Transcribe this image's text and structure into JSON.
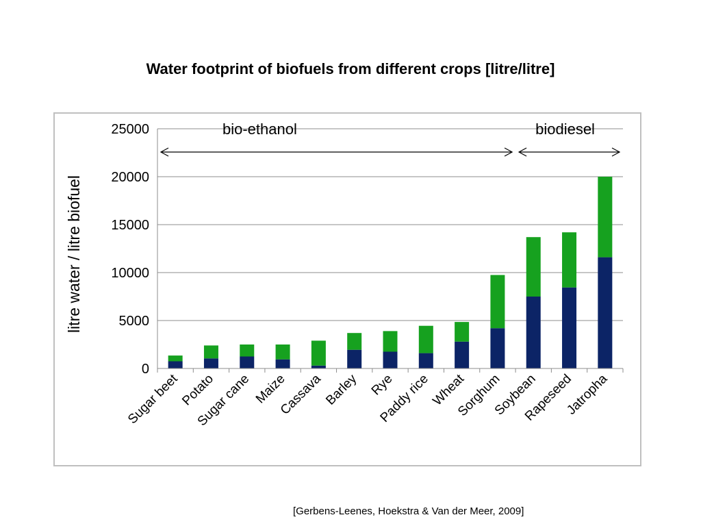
{
  "slide": {
    "title": "Water footprint of biofuels from different crops [litre/litre]",
    "citation": "[Gerbens-Leenes, Hoekstra & Van der Meer, 2009]"
  },
  "chart_data": {
    "type": "bar",
    "stacked": true,
    "title": "",
    "ylabel": "litre water / litre biofuel",
    "xlabel": "",
    "ylim": [
      0,
      25000
    ],
    "yticks": [
      0,
      5000,
      10000,
      15000,
      20000,
      25000
    ],
    "grid": true,
    "categories": [
      "Sugar beet",
      "Potato",
      "Sugar cane",
      "Maize",
      "Cassava",
      "Barley",
      "Rye",
      "Paddy rice",
      "Wheat",
      "Sorghum",
      "Soybean",
      "Rapeseed",
      "Jatropha"
    ],
    "series": [
      {
        "color": "#0c2466",
        "values": [
          750,
          1050,
          1250,
          950,
          300,
          1950,
          1750,
          1600,
          2800,
          4200,
          7500,
          8450,
          11600
        ]
      },
      {
        "color": "#16a11f",
        "values": [
          600,
          1350,
          1250,
          1550,
          2600,
          1750,
          2150,
          2850,
          2050,
          5550,
          6200,
          5750,
          8400
        ]
      }
    ],
    "annotations": [
      {
        "label": "bio-ethanol",
        "from_category": "Sugar beet",
        "to_category": "Sorghum"
      },
      {
        "label": "biodiesel",
        "from_category": "Soybean",
        "to_category": "Jatropha"
      }
    ]
  }
}
